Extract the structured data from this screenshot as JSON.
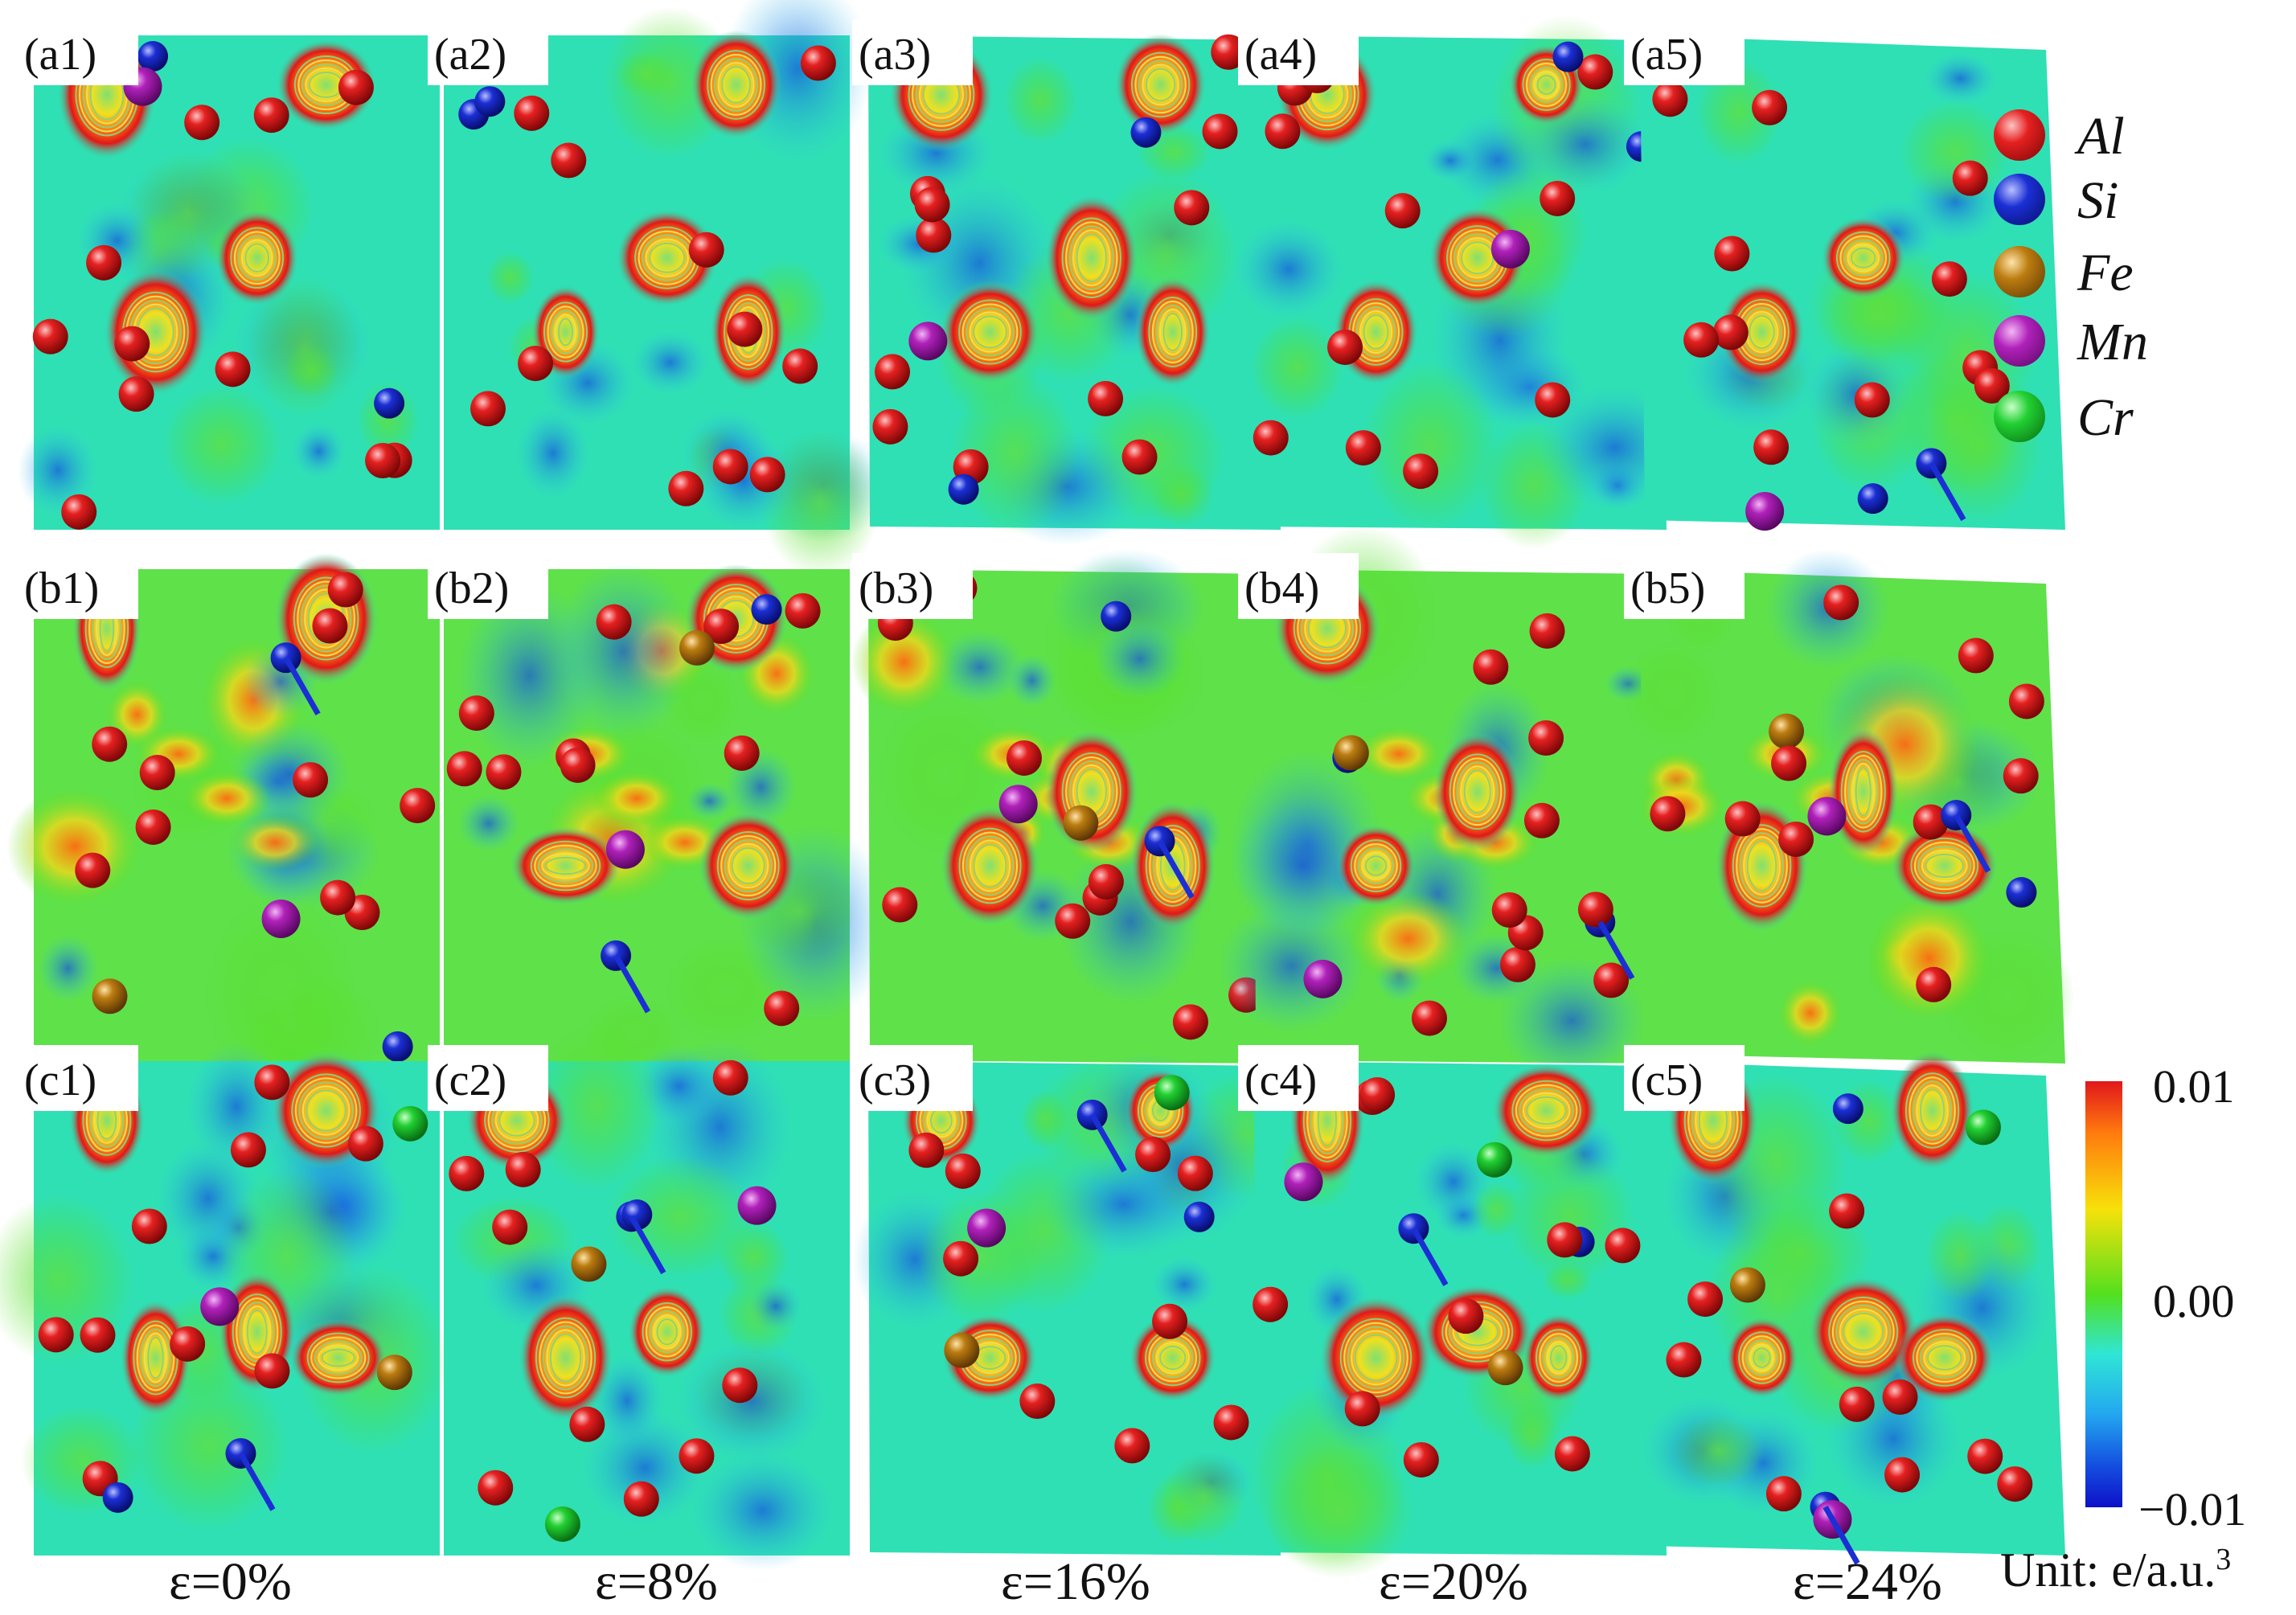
{
  "panels": [
    {
      "id": "a1",
      "label": "(a1)",
      "row": 0,
      "col": 0
    },
    {
      "id": "a2",
      "label": "(a2)",
      "row": 0,
      "col": 1
    },
    {
      "id": "a3",
      "label": "(a3)",
      "row": 0,
      "col": 2
    },
    {
      "id": "a4",
      "label": "(a4)",
      "row": 0,
      "col": 3
    },
    {
      "id": "a5",
      "label": "(a5)",
      "row": 0,
      "col": 4
    },
    {
      "id": "b1",
      "label": "(b1)",
      "row": 1,
      "col": 0
    },
    {
      "id": "b2",
      "label": "(b2)",
      "row": 1,
      "col": 1
    },
    {
      "id": "b3",
      "label": "(b3)",
      "row": 1,
      "col": 2
    },
    {
      "id": "b4",
      "label": "(b4)",
      "row": 1,
      "col": 3
    },
    {
      "id": "b5",
      "label": "(b5)",
      "row": 1,
      "col": 4
    },
    {
      "id": "c1",
      "label": "(c1)",
      "row": 2,
      "col": 0
    },
    {
      "id": "c2",
      "label": "(c2)",
      "row": 2,
      "col": 1
    },
    {
      "id": "c3",
      "label": "(c3)",
      "row": 2,
      "col": 2
    },
    {
      "id": "c4",
      "label": "(c4)",
      "row": 2,
      "col": 3
    },
    {
      "id": "c5",
      "label": "(c5)",
      "row": 2,
      "col": 4
    }
  ],
  "legend": [
    {
      "element": "Al",
      "color": "#e0161b"
    },
    {
      "element": "Si",
      "color": "#1424c8"
    },
    {
      "element": "Fe",
      "color": "#b5780e"
    },
    {
      "element": "Mn",
      "color": "#b020b8"
    },
    {
      "element": "Cr",
      "color": "#1fcf2e"
    }
  ],
  "colorbar": {
    "max": "0.01",
    "mid": "0.00",
    "min": "−0.01",
    "unit": "Unit: e/a.u.",
    "unit_exponent": "3"
  },
  "strain_labels": [
    "ε=0%",
    "ε=8%",
    "ε=16%",
    "ε=20%",
    "ε=24%"
  ],
  "colors": {
    "map_background": "#2fe0b0",
    "positive": "#e0161b",
    "negative": "#1450e0",
    "neutral": "#53e01e"
  }
}
